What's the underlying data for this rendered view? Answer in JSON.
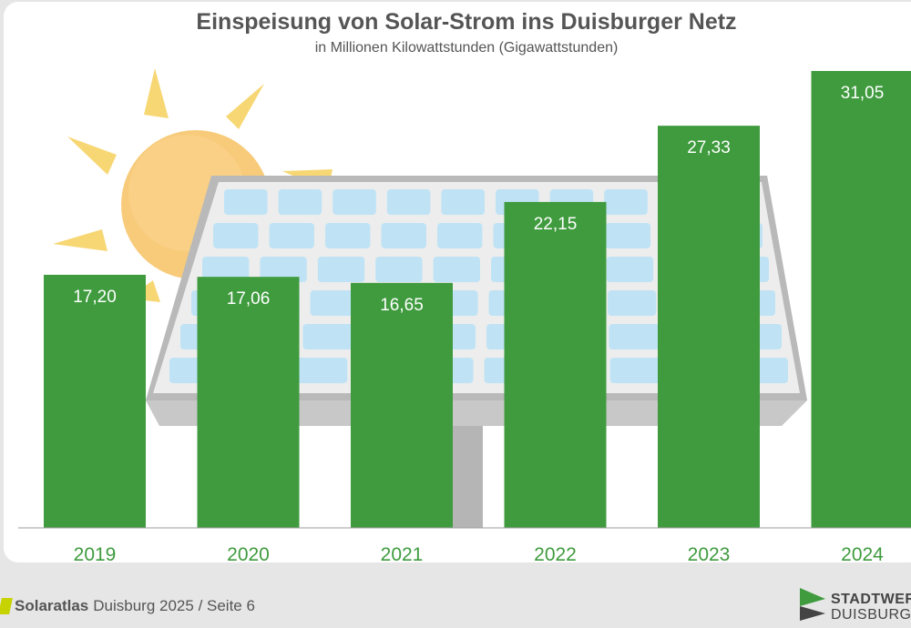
{
  "header": {
    "title": "Einspeisung von Solar-Strom ins Duisburger Netz",
    "subtitle": "in Millionen Kilowattstunden (Gigawattstunden)"
  },
  "chart_data": {
    "type": "bar",
    "title": "Einspeisung von Solar-Strom ins Duisburger Netz",
    "subtitle": "in Millionen Kilowattstunden (Gigawattstunden)",
    "categories": [
      "2019",
      "2020",
      "2021",
      "2022",
      "2023",
      "2024"
    ],
    "values": [
      17.2,
      17.06,
      16.65,
      22.15,
      27.33,
      31.05
    ],
    "value_labels": [
      "17,20",
      "17,06",
      "16,65",
      "22,15",
      "27,33",
      "31,05"
    ],
    "xlabel": "",
    "ylabel": "",
    "ylim": [
      0,
      31.05
    ],
    "grid": false,
    "legend": "none",
    "bar_color": "#3f9b3e",
    "value_label_color": "#ffffff",
    "category_label_color": "#3f9b3e"
  },
  "footer": {
    "brand": "Solaratlas",
    "text": "Duisburg 2025 / Seite 6",
    "accent_color": "#c7d300"
  },
  "logo": {
    "line1": "STADTWER",
    "line2": "DUISBURG",
    "icon": "stadtwerke-logo-icon",
    "colors": [
      "#3f9b3e",
      "#444444"
    ]
  }
}
